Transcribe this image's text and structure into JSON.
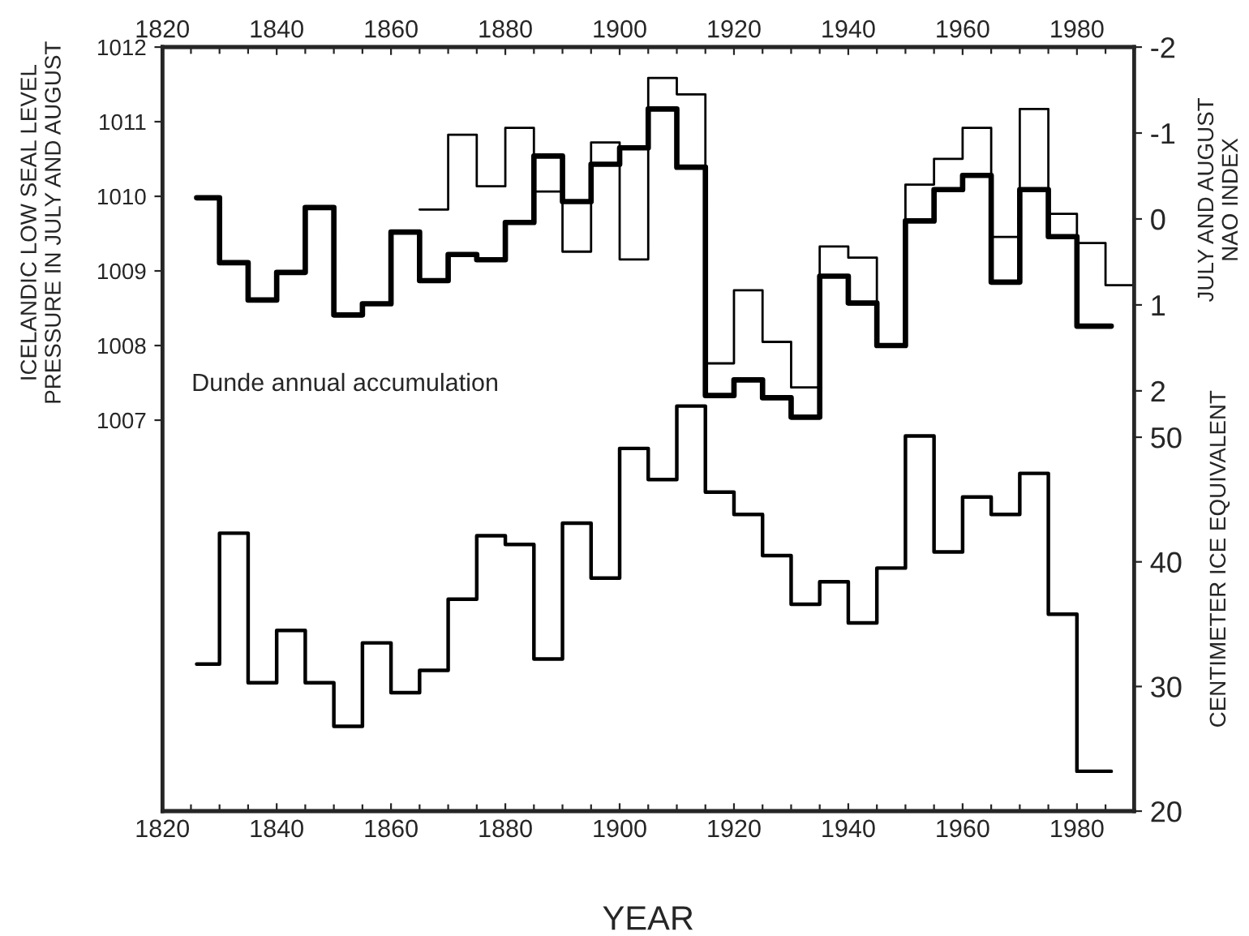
{
  "chart_data": {
    "type": "step",
    "xlabel": "YEAR",
    "ylabel": "ICELANDIC LOW SEAL LEVEL\nPRESSURE IN JULY AND AUGUST",
    "y2label": "JULY AND AUGUST\nNAO INDEX",
    "y3label": "CENTIMETER ICE EQUIVALENT",
    "annotations": [
      "Dunde annual accumulation"
    ],
    "xlim": [
      1820,
      1990
    ],
    "xticks": [
      1820,
      {
        "value": 1825,
        "label": null
      },
      {
        "value": 1830,
        "label": null
      },
      {
        "value": 1835,
        "label": null
      },
      1840,
      {
        "value": 1845,
        "label": null
      },
      {
        "value": 1850,
        "label": null
      },
      {
        "value": 1855,
        "label": null
      },
      1860,
      {
        "value": 1865,
        "label": null
      },
      {
        "value": 1870,
        "label": null
      },
      {
        "value": 1875,
        "label": null
      },
      1880,
      {
        "value": 1885,
        "label": null
      },
      {
        "value": 1890,
        "label": null
      },
      {
        "value": 1895,
        "label": null
      },
      1900,
      {
        "value": 1905,
        "label": null
      },
      {
        "value": 1910,
        "label": null
      },
      {
        "value": 1915,
        "label": null
      },
      1920,
      {
        "value": 1925,
        "label": null
      },
      {
        "value": 1930,
        "label": null
      },
      {
        "value": 1935,
        "label": null
      },
      1940,
      {
        "value": 1945,
        "label": null
      },
      {
        "value": 1950,
        "label": null
      },
      {
        "value": 1955,
        "label": null
      },
      1960,
      {
        "value": 1965,
        "label": null
      },
      {
        "value": 1970,
        "label": null
      },
      {
        "value": 1975,
        "label": null
      },
      1980,
      {
        "value": 1985,
        "label": null
      }
    ],
    "x2lim": [
      1820,
      1990
    ],
    "x2ticks": [
      1820,
      {
        "value": 1825,
        "label": null
      },
      {
        "value": 1830,
        "label": null
      },
      {
        "value": 1835,
        "label": null
      },
      1840,
      {
        "value": 1845,
        "label": null
      },
      {
        "value": 1850,
        "label": null
      },
      {
        "value": 1855,
        "label": null
      },
      1860,
      {
        "value": 1865,
        "label": null
      },
      {
        "value": 1870,
        "label": null
      },
      {
        "value": 1875,
        "label": null
      },
      1880,
      {
        "value": 1885,
        "label": null
      },
      {
        "value": 1890,
        "label": null
      },
      {
        "value": 1895,
        "label": null
      },
      1900,
      {
        "value": 1905,
        "label": null
      },
      {
        "value": 1910,
        "label": null
      },
      {
        "value": 1915,
        "label": null
      },
      1920,
      {
        "value": 1925,
        "label": null
      },
      {
        "value": 1930,
        "label": null
      },
      {
        "value": 1935,
        "label": null
      },
      1940,
      {
        "value": 1945,
        "label": null
      },
      {
        "value": 1950,
        "label": null
      },
      {
        "value": 1955,
        "label": null
      },
      1960,
      {
        "value": 1965,
        "label": null
      },
      {
        "value": 1970,
        "label": null
      },
      {
        "value": 1975,
        "label": null
      },
      1980,
      {
        "value": 1985,
        "label": null
      }
    ],
    "ylim": [
      1001.76,
      1012
    ],
    "yticks": [
      1007,
      1008,
      1009,
      1010,
      1011,
      1012
    ],
    "y2lim": [
      6.89,
      -2
    ],
    "y2ticks": [
      -2,
      -1,
      0,
      1,
      2
    ],
    "y3lim": [
      20,
      81.3
    ],
    "y3ticks": [
      20,
      30,
      40,
      50
    ],
    "grid": false,
    "legend": false,
    "series": [
      {
        "axis": "y",
        "color": "#000000",
        "x": [
          1826,
          1830,
          1835,
          1840,
          1845,
          1850,
          1855,
          1860,
          1865,
          1870,
          1875,
          1880,
          1885,
          1890,
          1895,
          1900,
          1905,
          1910,
          1915,
          1920,
          1925,
          1930,
          1935,
          1940,
          1945,
          1950,
          1955,
          1960,
          1965,
          1970,
          1975,
          1980,
          1986
        ],
        "values": [
          1009.98,
          1009.11,
          1008.61,
          1008.98,
          1009.85,
          1008.41,
          1008.56,
          1009.52,
          1008.87,
          1009.22,
          1009.15,
          1009.65,
          1010.54,
          1009.93,
          1010.43,
          1010.65,
          1011.17,
          1010.39,
          1007.33,
          1007.54,
          1007.3,
          1007.04,
          1008.93,
          1008.57,
          1008.0,
          1009.67,
          1010.09,
          1010.28,
          1008.85,
          1010.09,
          1009.46,
          1008.26,
          1008.26
        ]
      },
      {
        "axis": "y2",
        "color": "#000000",
        "x": [
          1865,
          1870,
          1875,
          1880,
          1885,
          1890,
          1895,
          1900,
          1905,
          1910,
          1915,
          1920,
          1925,
          1930,
          1935,
          1940,
          1945,
          1950,
          1955,
          1960,
          1965,
          1970,
          1975,
          1980,
          1985,
          1990
        ],
        "values": [
          -0.11,
          -0.98,
          -0.38,
          -1.06,
          -0.32,
          0.38,
          -0.89,
          0.47,
          -1.64,
          -1.45,
          1.68,
          0.83,
          1.43,
          1.96,
          0.32,
          0.45,
          1.47,
          -0.4,
          -0.7,
          -1.06,
          0.21,
          -1.28,
          -0.06,
          0.28,
          0.77,
          0.77
        ]
      },
      {
        "axis": "y3",
        "color": "#000000",
        "x": [
          1826,
          1830,
          1835,
          1840,
          1845,
          1850,
          1855,
          1860,
          1865,
          1870,
          1875,
          1880,
          1885,
          1890,
          1895,
          1900,
          1905,
          1910,
          1915,
          1920,
          1925,
          1930,
          1935,
          1940,
          1945,
          1950,
          1955,
          1960,
          1965,
          1970,
          1975,
          1980,
          1986
        ],
        "values": [
          31.8,
          42.3,
          30.3,
          34.5,
          30.3,
          26.8,
          33.5,
          29.5,
          31.3,
          37.0,
          42.1,
          41.4,
          32.2,
          43.1,
          38.7,
          49.1,
          46.6,
          52.5,
          45.6,
          43.8,
          40.5,
          36.6,
          38.4,
          35.1,
          39.5,
          50.1,
          40.8,
          45.2,
          43.8,
          47.1,
          35.8,
          23.2,
          23.2
        ]
      }
    ]
  }
}
